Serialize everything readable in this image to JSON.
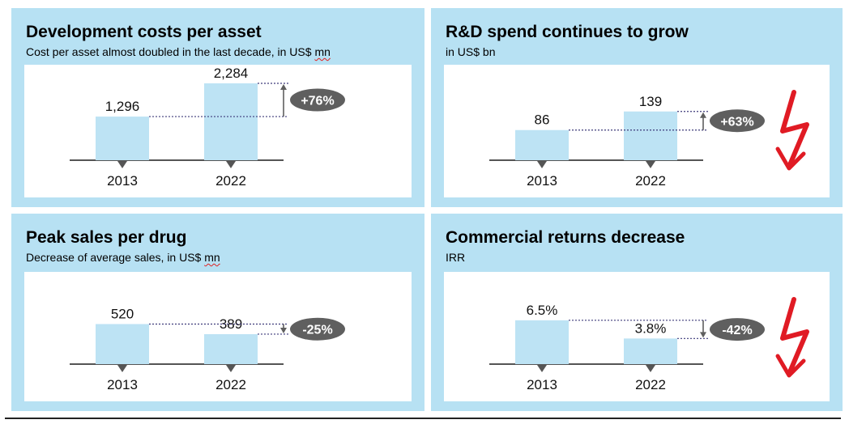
{
  "colors": {
    "panel_bg": "#b7e1f3",
    "bar": "#bde3f4",
    "axis": "#555555",
    "badge": "#5f5f5f",
    "guide": "#3d3a7a",
    "lightning": "#e01b24"
  },
  "chart_data": [
    {
      "type": "bar",
      "title": "Development costs per asset",
      "subtitle_prefix": "Cost per asset almost doubled in the last decade, in US$",
      "subtitle_unit": "mn",
      "categories": [
        "2013",
        "2022"
      ],
      "values": [
        1296,
        2284
      ],
      "value_labels": [
        "1,296",
        "2,284"
      ],
      "change_label": "+76%",
      "ylim": [
        0,
        2500
      ],
      "lightning": false
    },
    {
      "type": "bar",
      "title": "R&D spend continues to grow",
      "subtitle_prefix": "in US$ bn",
      "subtitle_unit": "",
      "categories": [
        "2013",
        "2022"
      ],
      "values": [
        86,
        139
      ],
      "value_labels": [
        "86",
        "139"
      ],
      "change_label": "+63%",
      "ylim": [
        0,
        240
      ],
      "lightning": true
    },
    {
      "type": "bar",
      "title": "Peak sales per drug",
      "subtitle_prefix": "Decrease of average sales, in US$",
      "subtitle_unit": "mn",
      "categories": [
        "2013",
        "2022"
      ],
      "values": [
        520,
        389
      ],
      "value_labels": [
        "520",
        "389"
      ],
      "change_label": "-25%",
      "ylim": [
        0,
        1050
      ],
      "lightning": false
    },
    {
      "type": "bar",
      "title": "Commercial returns decrease",
      "subtitle_prefix": "IRR",
      "subtitle_unit": "",
      "categories": [
        "2013",
        "2022"
      ],
      "values": [
        6.5,
        3.8
      ],
      "value_labels": [
        "6.5%",
        "3.8%"
      ],
      "change_label": "-42%",
      "ylim": [
        0,
        12
      ],
      "lightning": true
    }
  ]
}
